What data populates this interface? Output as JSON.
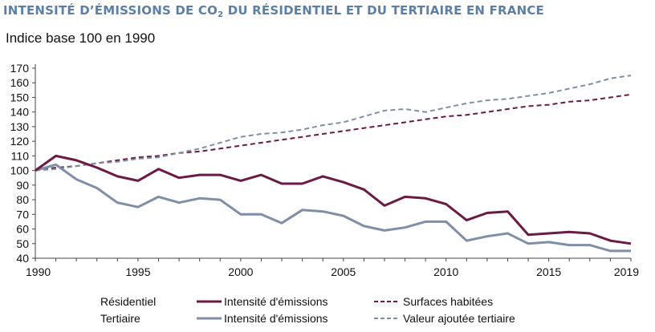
{
  "header": {
    "title_pre": "INTENSITÉ D’ÉMISSIONS DE CO",
    "title_sub": "2",
    "title_post": " DU RÉSIDENTIEL ET DU TERTIAIRE EN FRANCE",
    "subtitle": "Indice base 100 en 1990"
  },
  "colors": {
    "residentiel": "#6b1a45",
    "tertiaire": "#7f8fa8",
    "axis": "#444444"
  },
  "chart_data": {
    "type": "line",
    "title": "INTENSITÉ D’ÉMISSIONS DE CO2 DU RÉSIDENTIEL ET DU TERTIAIRE EN FRANCE",
    "subtitle": "Indice base 100 en 1990",
    "xlim": [
      1990,
      2019
    ],
    "ylim": [
      40,
      170
    ],
    "x_ticks": [
      "1990",
      "1995",
      "2000",
      "2005",
      "2010",
      "2015",
      "2019"
    ],
    "y_ticks": [
      "40",
      "50",
      "60",
      "70",
      "80",
      "90",
      "100",
      "110",
      "120",
      "130",
      "140",
      "150",
      "160",
      "170"
    ],
    "grid": false,
    "legend_position": "bottom",
    "legend_groups": [
      {
        "label": "Résidentiel",
        "entries": [
          "Intensité d'émissions",
          "Surfaces habitées"
        ]
      },
      {
        "label": "Tertiaire",
        "entries": [
          "Intensité d'émissions",
          "Valeur ajoutée tertiaire"
        ]
      }
    ],
    "x": [
      1990,
      1991,
      1992,
      1993,
      1994,
      1995,
      1996,
      1997,
      1998,
      1999,
      2000,
      2001,
      2002,
      2003,
      2004,
      2005,
      2006,
      2007,
      2008,
      2009,
      2010,
      2011,
      2012,
      2013,
      2014,
      2015,
      2016,
      2017,
      2018,
      2019
    ],
    "series": [
      {
        "name": "Intensité d'émissions",
        "group": "Résidentiel",
        "color": "#6b1a45",
        "dash": "solid",
        "values": [
          100,
          110,
          107,
          102,
          96,
          93,
          101,
          95,
          97,
          97,
          93,
          97,
          91,
          91,
          96,
          92,
          87,
          76,
          82,
          81,
          77,
          66,
          71,
          72,
          56,
          57,
          58,
          57,
          52,
          50
        ]
      },
      {
        "name": "Surfaces habitées",
        "group": "Résidentiel",
        "color": "#6b1a45",
        "dash": "dashed",
        "values": [
          100,
          102,
          103,
          105,
          107,
          109,
          110,
          112,
          113,
          115,
          117,
          119,
          121,
          123,
          125,
          127,
          129,
          131,
          133,
          135,
          137,
          138,
          140,
          142,
          144,
          145,
          147,
          148,
          150,
          152
        ]
      },
      {
        "name": "Intensité d'émissions",
        "group": "Tertiaire",
        "color": "#7f8fa8",
        "dash": "solid",
        "values": [
          100,
          104,
          94,
          88,
          78,
          75,
          82,
          78,
          81,
          80,
          70,
          70,
          64,
          73,
          72,
          69,
          62,
          59,
          61,
          65,
          65,
          52,
          55,
          57,
          50,
          51,
          49,
          49,
          45,
          45
        ]
      },
      {
        "name": "Valeur ajoutée tertiaire",
        "group": "Tertiaire",
        "color": "#7f8fa8",
        "dash": "dashed",
        "values": [
          100,
          101,
          103,
          105,
          106,
          108,
          109,
          112,
          115,
          119,
          123,
          125,
          126,
          128,
          131,
          133,
          137,
          141,
          142,
          140,
          143,
          146,
          148,
          149,
          151,
          153,
          156,
          159,
          163,
          165
        ]
      }
    ]
  }
}
